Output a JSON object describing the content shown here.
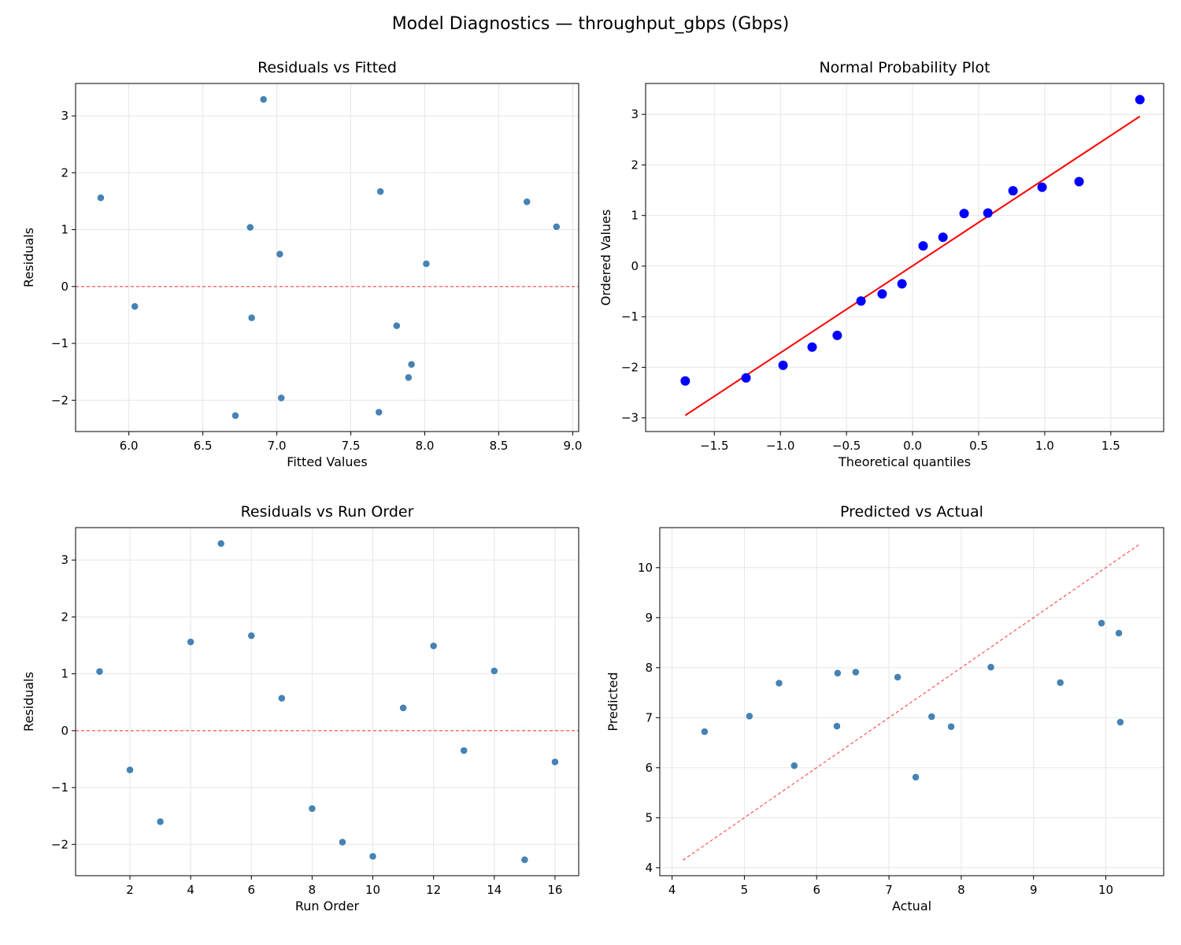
{
  "suptitle": "Model Diagnostics — throughput_gbps (Gbps)",
  "colors": {
    "points": "#4682b4",
    "qq_points": "#0000ff",
    "reference_line": "#ff0000",
    "grid": "#e6e6e6"
  },
  "chart_data": [
    {
      "type": "scatter",
      "title": "Residuals vs Fitted",
      "xlabel": "Fitted Values",
      "ylabel": "Residuals",
      "xlim": [
        5.64,
        9.04
      ],
      "ylim": [
        -2.55,
        3.57
      ],
      "xticks": [
        6.0,
        6.5,
        7.0,
        7.5,
        8.0,
        8.5,
        9.0
      ],
      "xticklabels": [
        "6.0",
        "6.5",
        "7.0",
        "7.5",
        "8.0",
        "8.5",
        "9.0"
      ],
      "yticks": [
        -2,
        -1,
        0,
        1,
        2,
        3
      ],
      "yticklabels": [
        "−2",
        "−1",
        "0",
        "1",
        "2",
        "3"
      ],
      "grid": true,
      "x": [
        6.82,
        7.81,
        7.89,
        5.81,
        6.91,
        7.7,
        7.02,
        7.91,
        7.03,
        7.69,
        8.01,
        8.69,
        6.04,
        8.89,
        6.72,
        6.83
      ],
      "y": [
        1.04,
        -0.69,
        -1.6,
        1.56,
        3.29,
        1.67,
        0.57,
        -1.37,
        -1.96,
        -2.21,
        0.4,
        1.49,
        -0.35,
        1.05,
        -2.27,
        -0.55
      ],
      "reference": {
        "kind": "hline",
        "y": 0,
        "style": "dashed"
      }
    },
    {
      "type": "scatter",
      "title": "Normal Probability Plot",
      "xlabel": "Theoretical quantiles",
      "ylabel": "Ordered Values",
      "xlim": [
        -2.02,
        1.9
      ],
      "ylim": [
        -3.27,
        3.61
      ],
      "xticks": [
        -1.5,
        -1.0,
        -0.5,
        0.0,
        0.5,
        1.0,
        1.5
      ],
      "xticklabels": [
        "−1.5",
        "−1.0",
        "−0.5",
        "0.0",
        "0.5",
        "1.0",
        "1.5"
      ],
      "yticks": [
        -3,
        -2,
        -1,
        0,
        1,
        2,
        3
      ],
      "yticklabels": [
        "−3",
        "−2",
        "−1",
        "0",
        "1",
        "2",
        "3"
      ],
      "grid": true,
      "x": [
        -1.72,
        -1.26,
        -0.98,
        -0.76,
        -0.57,
        -0.39,
        -0.23,
        -0.08,
        0.08,
        0.23,
        0.39,
        0.57,
        0.76,
        0.98,
        1.26,
        1.72
      ],
      "y": [
        -2.27,
        -2.21,
        -1.96,
        -1.6,
        -1.37,
        -0.69,
        -0.55,
        -0.35,
        0.4,
        0.57,
        1.04,
        1.05,
        1.49,
        1.56,
        1.67,
        3.29
      ],
      "reference": {
        "kind": "line",
        "x": [
          -1.72,
          1.72
        ],
        "y": [
          -2.95,
          2.96
        ],
        "style": "solid"
      }
    },
    {
      "type": "scatter",
      "title": "Residuals vs Run Order",
      "xlabel": "Run Order",
      "ylabel": "Residuals",
      "xlim": [
        0.21,
        16.78
      ],
      "ylim": [
        -2.55,
        3.57
      ],
      "xticks": [
        2,
        4,
        6,
        8,
        10,
        12,
        14,
        16
      ],
      "xticklabels": [
        "2",
        "4",
        "6",
        "8",
        "10",
        "12",
        "14",
        "16"
      ],
      "yticks": [
        -2,
        -1,
        0,
        1,
        2,
        3
      ],
      "yticklabels": [
        "−2",
        "−1",
        "0",
        "1",
        "2",
        "3"
      ],
      "grid": true,
      "x": [
        1,
        2,
        3,
        4,
        5,
        6,
        7,
        8,
        9,
        10,
        11,
        12,
        13,
        14,
        15,
        16
      ],
      "y": [
        1.04,
        -0.69,
        -1.6,
        1.56,
        3.29,
        1.67,
        0.57,
        -1.37,
        -1.96,
        -2.21,
        0.4,
        1.49,
        -0.35,
        1.05,
        -2.27,
        -0.55
      ],
      "reference": {
        "kind": "hline",
        "y": 0,
        "style": "dashed"
      }
    },
    {
      "type": "scatter",
      "title": "Predicted vs Actual",
      "xlabel": "Actual",
      "ylabel": "Predicted",
      "xlim": [
        3.83,
        10.8
      ],
      "ylim": [
        3.84,
        10.8
      ],
      "xticks": [
        4,
        5,
        6,
        7,
        8,
        9,
        10
      ],
      "xticklabels": [
        "4",
        "5",
        "6",
        "7",
        "8",
        "9",
        "10"
      ],
      "yticks": [
        4,
        5,
        6,
        7,
        8,
        9,
        10
      ],
      "yticklabels": [
        "4",
        "5",
        "6",
        "7",
        "8",
        "9",
        "10"
      ],
      "grid": true,
      "x": [
        7.86,
        7.12,
        6.29,
        7.37,
        10.2,
        9.37,
        7.59,
        6.54,
        5.07,
        5.48,
        8.41,
        10.18,
        5.69,
        9.94,
        4.45,
        6.28
      ],
      "y": [
        6.82,
        7.81,
        7.89,
        5.81,
        6.91,
        7.7,
        7.02,
        7.91,
        7.03,
        7.69,
        8.01,
        8.69,
        6.04,
        8.89,
        6.72,
        6.83
      ],
      "reference": {
        "kind": "line",
        "x": [
          4.15,
          10.48
        ],
        "y": [
          4.15,
          10.48
        ],
        "style": "dashed"
      }
    }
  ]
}
